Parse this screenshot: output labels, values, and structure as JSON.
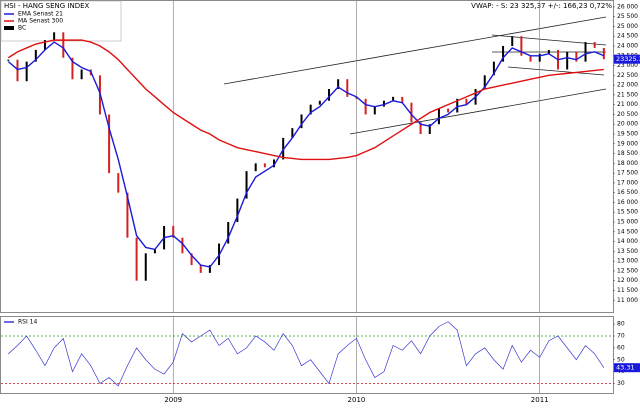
{
  "chart_data": [
    {
      "type": "line",
      "title": "HSI - HANG SENG INDEX",
      "info": "VWAP: -   S: 23 325,37   +/-: 166,23   0,72%",
      "last_value_label": "23325.37",
      "x": [
        2008.1,
        2008.15,
        2008.2,
        2008.25,
        2008.3,
        2008.35,
        2008.4,
        2008.45,
        2008.5,
        2008.55,
        2008.6,
        2008.65,
        2008.7,
        2008.75,
        2008.8,
        2008.85,
        2008.9,
        2008.95,
        2009.0,
        2009.05,
        2009.1,
        2009.15,
        2009.2,
        2009.25,
        2009.3,
        2009.35,
        2009.4,
        2009.45,
        2009.5,
        2009.55,
        2009.6,
        2009.65,
        2009.7,
        2009.75,
        2009.8,
        2009.85,
        2009.9,
        2009.95,
        2010.0,
        2010.05,
        2010.1,
        2010.15,
        2010.2,
        2010.25,
        2010.3,
        2010.35,
        2010.4,
        2010.45,
        2010.5,
        2010.55,
        2010.6,
        2010.65,
        2010.7,
        2010.75,
        2010.8,
        2010.85,
        2010.9,
        2010.95,
        2011.0,
        2011.05,
        2011.1,
        2011.15,
        2011.2,
        2011.25,
        2011.3,
        2011.35
      ],
      "series": [
        {
          "name": "EMA  Senast 21",
          "color": "#1a1adb",
          "values": [
            23200,
            22800,
            22900,
            23300,
            23800,
            24200,
            23900,
            23200,
            22900,
            22700,
            21600,
            19800,
            18200,
            16300,
            14300,
            13700,
            13600,
            14200,
            14300,
            13900,
            13300,
            12800,
            12700,
            13300,
            14200,
            15300,
            16500,
            17300,
            17600,
            17900,
            18700,
            19300,
            20000,
            20600,
            20900,
            21400,
            21900,
            21600,
            21400,
            21000,
            20900,
            21000,
            21200,
            21100,
            20500,
            20000,
            19900,
            20300,
            20500,
            20900,
            21000,
            21400,
            21900,
            22600,
            23400,
            23900,
            23700,
            23500,
            23500,
            23600,
            23300,
            23400,
            23300,
            23600,
            23700,
            23500
          ]
        },
        {
          "name": "MA  Senast 300",
          "color": "#e01010",
          "values": [
            23400,
            23700,
            23900,
            24100,
            24200,
            24300,
            24300,
            24300,
            24300,
            24200,
            24000,
            23700,
            23300,
            22800,
            22300,
            21800,
            21400,
            21000,
            20600,
            20300,
            20000,
            19700,
            19500,
            19200,
            19000,
            18800,
            18700,
            18600,
            18500,
            18400,
            18300,
            18250,
            18200,
            18200,
            18200,
            18200,
            18250,
            18300,
            18400,
            18600,
            18800,
            19100,
            19400,
            19700,
            20000,
            20300,
            20600,
            20800,
            21000,
            21200,
            21400,
            21600,
            21800,
            21900,
            22000,
            22100,
            22200,
            22300,
            22400,
            22500,
            22550,
            22600,
            22650,
            22700,
            22750,
            22800
          ]
        },
        {
          "name": "BC",
          "color": "#000000",
          "mark": "bar",
          "up_color": "#000000",
          "down_color": "#d42020",
          "values": [
            23300,
            22200,
            23200,
            23800,
            24300,
            24700,
            23400,
            22300,
            22800,
            22500,
            20500,
            17500,
            16500,
            14200,
            12000,
            13400,
            13600,
            14800,
            14200,
            13400,
            12800,
            12400,
            12800,
            13900,
            15000,
            16200,
            17600,
            18000,
            17800,
            18200,
            19300,
            19800,
            20500,
            21000,
            21200,
            21800,
            22300,
            21400,
            21300,
            20500,
            20900,
            21200,
            21400,
            21100,
            20100,
            19500,
            20000,
            20800,
            20600,
            21300,
            21000,
            21800,
            22500,
            23200,
            24000,
            24500,
            23500,
            23200,
            23600,
            23800,
            22800,
            23700,
            23200,
            24200,
            23900,
            23325.37
          ]
        }
      ],
      "xlim": [
        2008.06,
        2011.4
      ],
      "ylim": [
        10400,
        26300
      ],
      "xticks": [
        2009,
        2010,
        2011
      ],
      "yticks": [
        {
          "value": 11000,
          "label": "11 000"
        },
        {
          "value": 11500,
          "label": "11 500"
        },
        {
          "value": 12000,
          "label": "12 000"
        },
        {
          "value": 12500,
          "label": "12 500"
        },
        {
          "value": 13000,
          "label": "13 000"
        },
        {
          "value": 13500,
          "label": "13 500"
        },
        {
          "value": 14000,
          "label": "14 000"
        },
        {
          "value": 14500,
          "label": "14 500"
        },
        {
          "value": 15000,
          "label": "15 000"
        },
        {
          "value": 15500,
          "label": "15 500"
        },
        {
          "value": 16000,
          "label": "16 000"
        },
        {
          "value": 16500,
          "label": "16 500"
        },
        {
          "value": 17000,
          "label": "17 000"
        },
        {
          "value": 17500,
          "label": "17 500"
        },
        {
          "value": 18000,
          "label": "18 000"
        },
        {
          "value": 18500,
          "label": "18 500"
        },
        {
          "value": 19000,
          "label": "19 000"
        },
        {
          "value": 19500,
          "label": "19 500"
        },
        {
          "value": 20000,
          "label": "20 000"
        },
        {
          "value": 20500,
          "label": "20 500"
        },
        {
          "value": 21000,
          "label": "21 000"
        },
        {
          "value": 21500,
          "label": "21 500"
        },
        {
          "value": 22000,
          "label": "22 000"
        },
        {
          "value": 22500,
          "label": "22 500"
        },
        {
          "value": 23000,
          "label": "23 000"
        },
        {
          "value": 23500,
          "label": "23 500"
        },
        {
          "value": 24000,
          "label": "24 000"
        },
        {
          "value": 24500,
          "label": "24 500"
        },
        {
          "value": 25000,
          "label": "25 000"
        },
        {
          "value": 25500,
          "label": "25 500"
        },
        {
          "value": 26000,
          "label": "26 000"
        }
      ]
    },
    {
      "type": "line",
      "last_value_label": "43.31",
      "x": [
        2008.1,
        2008.15,
        2008.2,
        2008.25,
        2008.3,
        2008.35,
        2008.4,
        2008.45,
        2008.5,
        2008.55,
        2008.6,
        2008.65,
        2008.7,
        2008.75,
        2008.8,
        2008.85,
        2008.9,
        2008.95,
        2009.0,
        2009.05,
        2009.1,
        2009.15,
        2009.2,
        2009.25,
        2009.3,
        2009.35,
        2009.4,
        2009.45,
        2009.5,
        2009.55,
        2009.6,
        2009.65,
        2009.7,
        2009.75,
        2009.8,
        2009.85,
        2009.9,
        2009.95,
        2010.0,
        2010.05,
        2010.1,
        2010.15,
        2010.2,
        2010.25,
        2010.3,
        2010.35,
        2010.4,
        2010.45,
        2010.5,
        2010.55,
        2010.6,
        2010.65,
        2010.7,
        2010.75,
        2010.8,
        2010.85,
        2010.9,
        2010.95,
        2011.0,
        2011.05,
        2011.1,
        2011.15,
        2011.2,
        2011.25,
        2011.3,
        2011.35
      ],
      "series": [
        {
          "name": "RSI 14",
          "color": "#3a3ad0",
          "values": [
            55,
            62,
            70,
            58,
            45,
            60,
            68,
            40,
            55,
            45,
            30,
            35,
            28,
            45,
            60,
            50,
            42,
            38,
            48,
            72,
            65,
            70,
            75,
            62,
            68,
            55,
            60,
            70,
            65,
            58,
            72,
            62,
            45,
            50,
            40,
            30,
            55,
            62,
            68,
            50,
            35,
            40,
            62,
            58,
            66,
            55,
            70,
            78,
            82,
            75,
            45,
            55,
            60,
            50,
            42,
            62,
            48,
            58,
            52,
            66,
            70,
            60,
            50,
            62,
            55,
            43.31
          ]
        }
      ],
      "reference_lines": [
        {
          "value": 70,
          "color": "#1a9a1a"
        },
        {
          "value": 30,
          "color": "#cc1010"
        }
      ],
      "xlim": [
        2008.06,
        2011.4
      ],
      "ylim": [
        22,
        86
      ],
      "xticks": [
        2009,
        2010,
        2011
      ],
      "yticks": [
        30,
        40,
        50,
        60,
        70,
        80
      ]
    }
  ]
}
